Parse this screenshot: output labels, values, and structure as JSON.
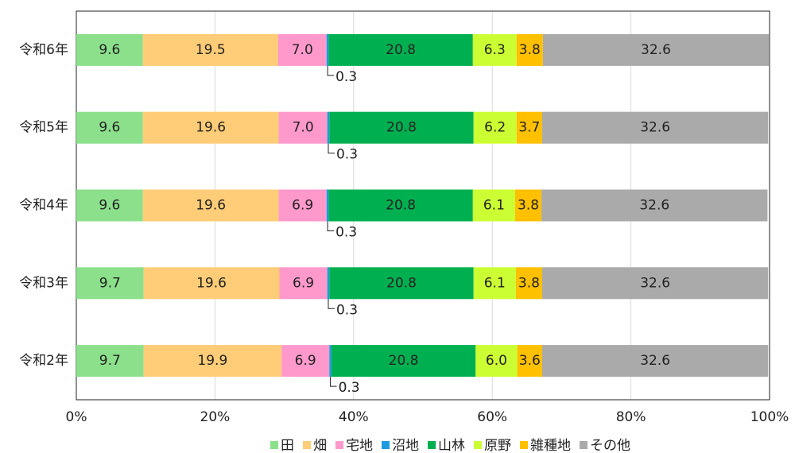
{
  "chart_data": {
    "type": "stacked-bar-horizontal",
    "categories": [
      "令和6年",
      "令和5年",
      "令和4年",
      "令和3年",
      "令和2年"
    ],
    "series": [
      {
        "name": "田",
        "color": "#8ce08c",
        "values": [
          9.6,
          9.6,
          9.6,
          9.7,
          9.7
        ],
        "value_labels": [
          "9.6",
          "9.6",
          "9.6",
          "9.7",
          "9.7"
        ]
      },
      {
        "name": "畑",
        "color": "#ffcc77",
        "values": [
          19.5,
          19.6,
          19.6,
          19.6,
          19.9
        ],
        "value_labels": [
          "19.5",
          "19.6",
          "19.6",
          "19.6",
          "19.9"
        ]
      },
      {
        "name": "宅地",
        "color": "#ff99cc",
        "values": [
          7.0,
          7.0,
          6.9,
          6.9,
          6.9
        ],
        "value_labels": [
          "7.0",
          "7.0",
          "6.9",
          "6.9",
          "6.9"
        ]
      },
      {
        "name": "沼地",
        "color": "#1e9be0",
        "values": [
          0.3,
          0.3,
          0.3,
          0.3,
          0.3
        ],
        "value_labels": [
          "0.3",
          "0.3",
          "0.3",
          "0.3",
          "0.3"
        ]
      },
      {
        "name": "山林",
        "color": "#00b050",
        "values": [
          20.8,
          20.8,
          20.8,
          20.8,
          20.8
        ],
        "value_labels": [
          "20.8",
          "20.8",
          "20.8",
          "20.8",
          "20.8"
        ]
      },
      {
        "name": "原野",
        "color": "#ccff33",
        "values": [
          6.3,
          6.2,
          6.1,
          6.1,
          6.0
        ],
        "value_labels": [
          "6.3",
          "6.2",
          "6.1",
          "6.1",
          "6.0"
        ]
      },
      {
        "name": "雑種地",
        "color": "#ffc000",
        "values": [
          3.8,
          3.7,
          3.8,
          3.8,
          3.6
        ],
        "value_labels": [
          "3.8",
          "3.7",
          "3.8",
          "3.8",
          "3.6"
        ]
      },
      {
        "name": "その他",
        "color": "#aaaaaa",
        "values": [
          32.6,
          32.6,
          32.6,
          32.6,
          32.6
        ],
        "value_labels": [
          "32.6",
          "32.6",
          "32.6",
          "32.6",
          "32.6"
        ]
      }
    ],
    "xlim": [
      0,
      100
    ],
    "xticks": [
      {
        "value": 0,
        "label": "0%"
      },
      {
        "value": 20,
        "label": "20%"
      },
      {
        "value": 40,
        "label": "40%"
      },
      {
        "value": 60,
        "label": "60%"
      },
      {
        "value": 80,
        "label": "80%"
      },
      {
        "value": 100,
        "label": "100%"
      }
    ],
    "grid": true,
    "legend": "bottom"
  }
}
